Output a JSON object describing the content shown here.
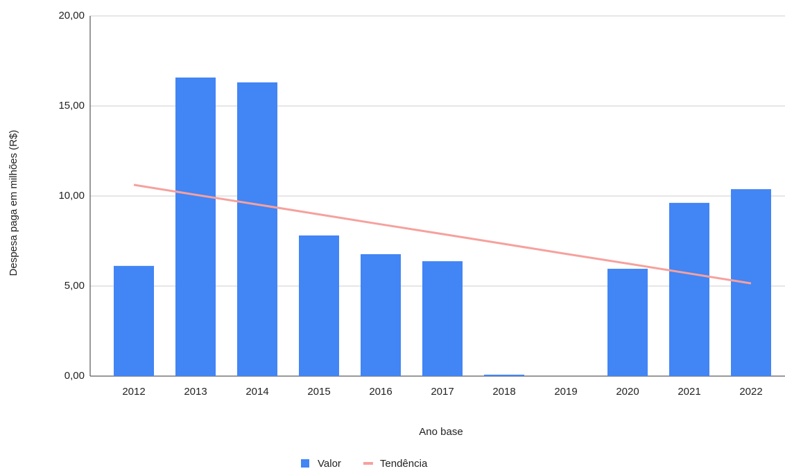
{
  "chart_data": {
    "type": "bar",
    "x_label": "Ano base",
    "y_label": "Despesa paga em milhões (R$)",
    "categories": [
      "2012",
      "2013",
      "2014",
      "2015",
      "2016",
      "2017",
      "2018",
      "2019",
      "2020",
      "2021",
      "2022"
    ],
    "series": [
      {
        "name": "Valor",
        "color": "#4285f4",
        "values": [
          6.12,
          16.58,
          16.31,
          7.81,
          6.77,
          6.38,
          0.08,
          0,
          5.96,
          9.62,
          10.38
        ]
      },
      {
        "name": "Tendência",
        "color": "#f6a19d",
        "type": "line",
        "values": [
          10.62,
          10.07,
          9.53,
          8.98,
          8.43,
          7.89,
          7.34,
          6.79,
          6.25,
          5.7,
          5.15
        ]
      }
    ],
    "ylim": [
      0,
      20
    ],
    "yticks": [
      {
        "value": 0,
        "label": "0,00"
      },
      {
        "value": 5,
        "label": "5,00"
      },
      {
        "value": 10,
        "label": "10,00"
      },
      {
        "value": 15,
        "label": "15,00"
      },
      {
        "value": 20,
        "label": "20,00"
      }
    ],
    "grid": true,
    "legend": "bottom"
  }
}
